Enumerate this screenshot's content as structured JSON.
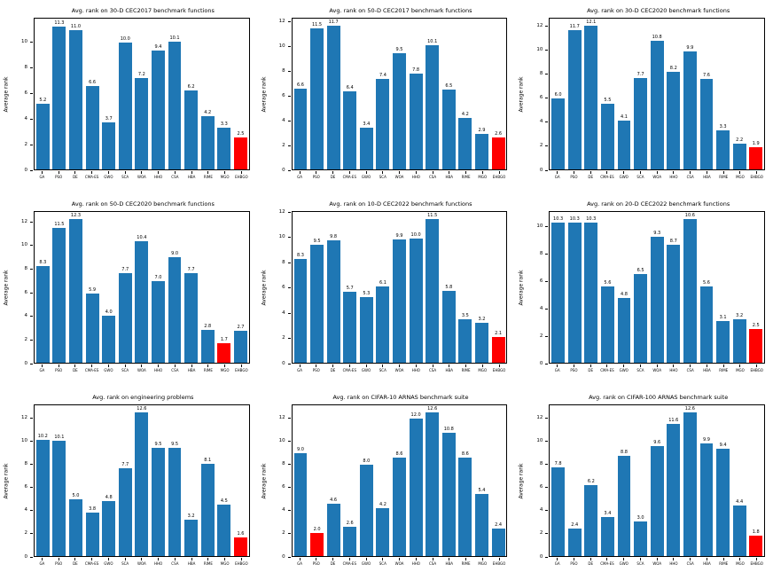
{
  "figure": {
    "background": "#ffffff",
    "bar_color": "#1f77b4",
    "highlight_color": "#ff0000",
    "ylabel": "Average rank"
  },
  "chart_data": [
    {
      "type": "bar",
      "title": "Avg. rank on 30-D CEC2017 benchmark functions",
      "ylabel": "Average rank",
      "categories": [
        "GA",
        "PSO",
        "DE",
        "CMA-ES",
        "GWO",
        "SCA",
        "WOA",
        "HHO",
        "CSA",
        "HBA",
        "RIME",
        "MGO",
        "EHBGO"
      ],
      "values": [
        "5.2",
        "11.3",
        "11.0",
        "6.6",
        "3.7",
        "10.0",
        "7.2",
        "9.4",
        "10.1",
        "6.2",
        "4.2",
        "3.3",
        "2.5"
      ],
      "highlight_index": 12,
      "ylim": [
        0,
        11.9
      ],
      "yticks": [
        0,
        2,
        4,
        6,
        8,
        10
      ],
      "grid": false,
      "legend": "none"
    },
    {
      "type": "bar",
      "title": "Avg. rank on 50-D CEC2017 benchmark functions",
      "ylabel": "Average rank",
      "categories": [
        "GA",
        "PSO",
        "DE",
        "CMA-ES",
        "GWO",
        "SCA",
        "WOA",
        "HHO",
        "CSA",
        "HBA",
        "RIME",
        "MGO",
        "EHBGO"
      ],
      "values": [
        "6.6",
        "11.5",
        "11.7",
        "6.4",
        "3.4",
        "7.4",
        "9.5",
        "7.8",
        "10.1",
        "6.5",
        "4.2",
        "2.9",
        "2.6"
      ],
      "highlight_index": 12,
      "ylim": [
        0,
        12.3
      ],
      "yticks": [
        0,
        2,
        4,
        6,
        8,
        10,
        12
      ],
      "grid": false,
      "legend": "none"
    },
    {
      "type": "bar",
      "title": "Avg. rank on 30-D CEC2020 benchmark functions",
      "ylabel": "Average rank",
      "categories": [
        "GA",
        "PSO",
        "DE",
        "CMA-ES",
        "GWO",
        "SCA",
        "WOA",
        "HHO",
        "CSA",
        "HBA",
        "RIME",
        "MGO",
        "EHBGO"
      ],
      "values": [
        "6.0",
        "11.7",
        "12.1",
        "5.5",
        "4.1",
        "7.7",
        "10.8",
        "8.2",
        "9.9",
        "7.6",
        "3.3",
        "2.2",
        "1.9"
      ],
      "highlight_index": 12,
      "ylim": [
        0,
        12.7
      ],
      "yticks": [
        0,
        2,
        4,
        6,
        8,
        10,
        12
      ],
      "grid": false,
      "legend": "none"
    },
    {
      "type": "bar",
      "title": "Avg. rank on 50-D CEC2020 benchmark functions",
      "ylabel": "Average rank",
      "categories": [
        "GA",
        "PSO",
        "DE",
        "CMA-ES",
        "GWO",
        "SCA",
        "WOA",
        "HHO",
        "CSA",
        "HBA",
        "RIME",
        "MGO",
        "EHBGO"
      ],
      "values": [
        "8.3",
        "11.5",
        "12.3",
        "5.9",
        "4.0",
        "7.7",
        "10.4",
        "7.0",
        "9.0",
        "7.7",
        "2.8",
        "1.7",
        "2.7"
      ],
      "highlight_index": 11,
      "ylim": [
        0,
        12.9
      ],
      "yticks": [
        0,
        2,
        4,
        6,
        8,
        10,
        12
      ],
      "grid": false,
      "legend": "none"
    },
    {
      "type": "bar",
      "title": "Avg. rank on 10-D CEC2022 benchmark functions",
      "ylabel": "Average rank",
      "categories": [
        "GA",
        "PSO",
        "DE",
        "CMA-ES",
        "GWO",
        "SCA",
        "WOA",
        "HHO",
        "CSA",
        "HBA",
        "RIME",
        "MGO",
        "EHBGO"
      ],
      "values": [
        "8.3",
        "9.5",
        "9.8",
        "5.7",
        "5.3",
        "6.1",
        "9.9",
        "10.0",
        "11.5",
        "5.8",
        "3.5",
        "3.2",
        "2.1"
      ],
      "highlight_index": 12,
      "ylim": [
        0,
        12.1
      ],
      "yticks": [
        0,
        2,
        4,
        6,
        8,
        10,
        12
      ],
      "grid": false,
      "legend": "none"
    },
    {
      "type": "bar",
      "title": "Avg. rank on 20-D CEC2022 benchmark functions",
      "ylabel": "Average rank",
      "categories": [
        "GA",
        "PSO",
        "DE",
        "CMA-ES",
        "GWO",
        "SCA",
        "WOA",
        "HHO",
        "CSA",
        "HBA",
        "RIME",
        "MGO",
        "EHBGO"
      ],
      "values": [
        "10.3",
        "10.3",
        "10.3",
        "5.6",
        "4.8",
        "6.5",
        "9.3",
        "8.7",
        "10.6",
        "5.6",
        "3.1",
        "3.2",
        "2.5"
      ],
      "highlight_index": 12,
      "ylim": [
        0,
        11.1
      ],
      "yticks": [
        0,
        2,
        4,
        6,
        8,
        10
      ],
      "grid": false,
      "legend": "none"
    },
    {
      "type": "bar",
      "title": "Avg. rank on engineering problems",
      "ylabel": "Average rank",
      "categories": [
        "GA",
        "PSO",
        "DE",
        "CMA-ES",
        "GWO",
        "SCA",
        "WOA",
        "HHO",
        "CSA",
        "HBA",
        "RIME",
        "MGO",
        "EHBGO"
      ],
      "values": [
        "10.2",
        "10.1",
        "5.0",
        "3.8",
        "4.8",
        "7.7",
        "12.6",
        "9.5",
        "9.5",
        "3.2",
        "8.1",
        "4.5",
        "1.6"
      ],
      "highlight_index": 12,
      "ylim": [
        0,
        13.2
      ],
      "yticks": [
        0,
        2,
        4,
        6,
        8,
        10,
        12
      ],
      "grid": false,
      "legend": "none"
    },
    {
      "type": "bar",
      "title": "Avg. rank on CIFAR-10 ARNAS benchmark suite",
      "ylabel": "Average rank",
      "categories": [
        "GA",
        "PSO",
        "DE",
        "CMA-ES",
        "GWO",
        "SCA",
        "WOA",
        "HHO",
        "CSA",
        "HBA",
        "RIME",
        "MGO",
        "EHBGO"
      ],
      "values": [
        "9.0",
        "2.0",
        "4.6",
        "2.6",
        "8.0",
        "4.2",
        "8.6",
        "12.0",
        "12.6",
        "10.8",
        "8.6",
        "5.4",
        "2.4"
      ],
      "highlight_index": 1,
      "ylim": [
        0,
        13.2
      ],
      "yticks": [
        0,
        2,
        4,
        6,
        8,
        10,
        12
      ],
      "grid": false,
      "legend": "none"
    },
    {
      "type": "bar",
      "title": "Avg. rank on CIFAR-100 ARNAS benchmark suite",
      "ylabel": "Average rank",
      "categories": [
        "GA",
        "PSO",
        "DE",
        "CMA-ES",
        "GWO",
        "SCA",
        "WOA",
        "HHO",
        "CSA",
        "HBA",
        "RIME",
        "MGO",
        "EHBGO"
      ],
      "values": [
        "7.8",
        "2.4",
        "6.2",
        "3.4",
        "8.8",
        "3.0",
        "9.6",
        "11.6",
        "12.6",
        "9.9",
        "9.4",
        "4.4",
        "1.8"
      ],
      "highlight_index": 12,
      "ylim": [
        0,
        13.2
      ],
      "yticks": [
        0,
        2,
        4,
        6,
        8,
        10,
        12
      ],
      "grid": false,
      "legend": "none"
    }
  ]
}
